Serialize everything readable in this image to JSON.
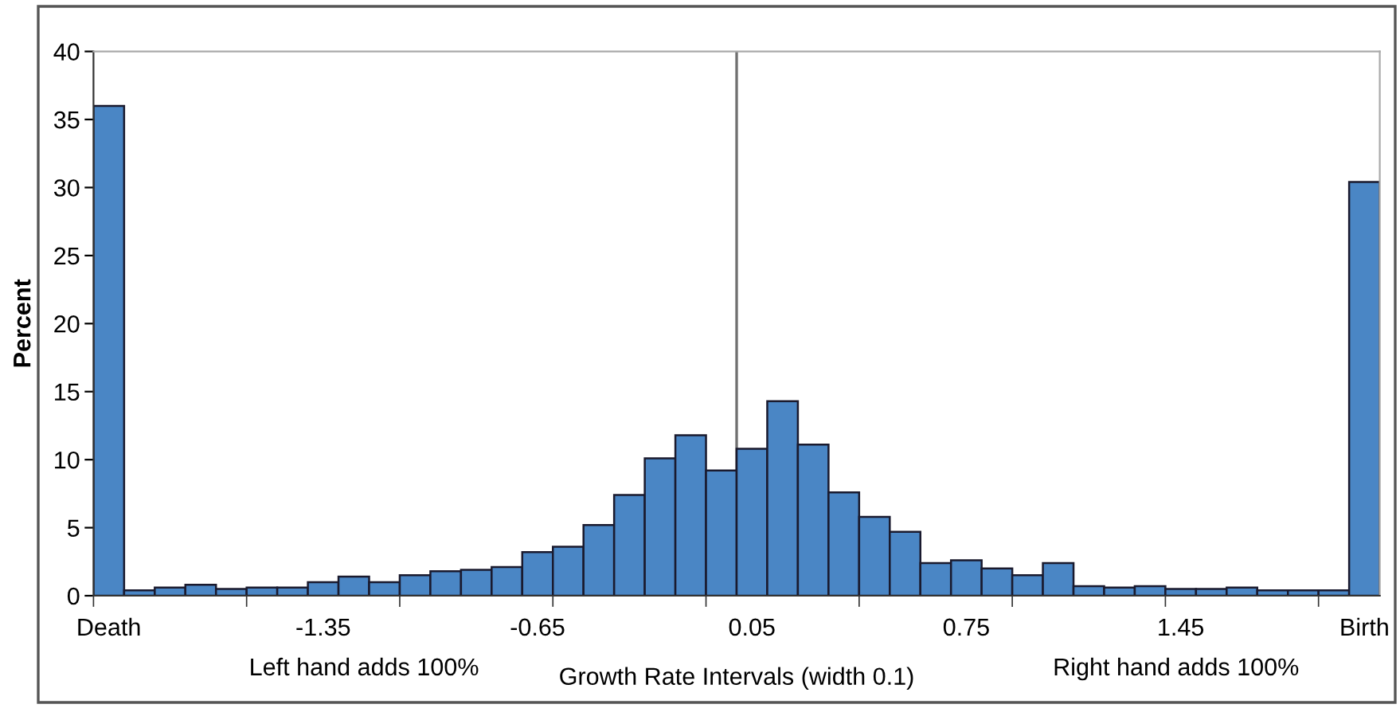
{
  "chart_data": {
    "type": "bar",
    "ylabel": "Percent",
    "xlabel": "Growth Rate Intervals (width 0.1)",
    "annotations": [
      "Left hand adds 100%",
      "Right hand adds 100%"
    ],
    "categories": [
      "Death",
      null,
      null,
      null,
      null,
      null,
      null,
      "-1.35",
      null,
      null,
      null,
      null,
      null,
      null,
      "-0.65",
      null,
      null,
      null,
      null,
      null,
      null,
      "0.05",
      null,
      null,
      null,
      null,
      null,
      null,
      "0.75",
      null,
      null,
      null,
      null,
      null,
      null,
      "1.45",
      null,
      null,
      null,
      null,
      null,
      "Birth"
    ],
    "values": [
      36,
      0.4,
      0.6,
      0.8,
      0.5,
      0.6,
      0.6,
      1.0,
      1.4,
      1.0,
      1.5,
      1.8,
      1.9,
      2.1,
      3.2,
      3.6,
      5.2,
      7.4,
      10.1,
      11.8,
      9.2,
      10.8,
      14.3,
      11.1,
      7.6,
      5.8,
      4.7,
      2.4,
      2.6,
      2.0,
      1.5,
      2.4,
      0.7,
      0.6,
      0.7,
      0.5,
      0.5,
      0.6,
      0.4,
      0.4,
      0.4,
      30.4
    ],
    "color": "#4a86c5",
    "ylim": [
      0,
      40
    ],
    "yticks": [
      0,
      5,
      10,
      15,
      20,
      25,
      30,
      35,
      40
    ],
    "grid": false,
    "legend": false
  }
}
